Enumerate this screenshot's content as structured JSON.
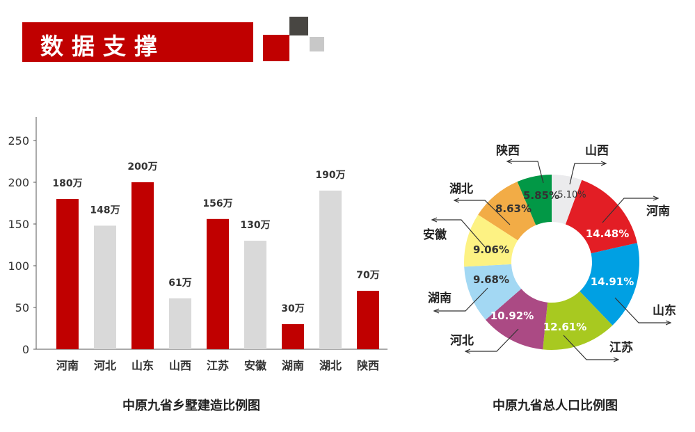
{
  "header": {
    "title": "数据支撑"
  },
  "colors": {
    "red": "#c00000",
    "grey": "#d9d9d9",
    "dark_square": "#484642",
    "light_square": "#c8c8c8"
  },
  "chart_data": [
    {
      "type": "bar",
      "title": "中原九省乡墅建造比例图",
      "categories": [
        "河南",
        "河北",
        "山东",
        "山西",
        "江苏",
        "安徽",
        "湖南",
        "湖北",
        "陕西"
      ],
      "values": [
        180,
        148,
        200,
        61,
        156,
        130,
        30,
        190,
        70
      ],
      "data_labels": [
        "180万",
        "148万",
        "200万",
        "61万",
        "156万",
        "130万",
        "30万",
        "190万",
        "70万"
      ],
      "bar_colors": [
        "#c00000",
        "#d9d9d9",
        "#c00000",
        "#d9d9d9",
        "#c00000",
        "#d9d9d9",
        "#c00000",
        "#d9d9d9",
        "#c00000"
      ],
      "yticks": [
        0,
        50,
        100,
        150,
        200,
        250
      ],
      "ylim": [
        0,
        250
      ],
      "xlabel": "",
      "ylabel": "",
      "grid": false
    },
    {
      "type": "pie",
      "title": "中原九省总人口比例图",
      "donut": true,
      "labels": [
        "山西",
        "河南",
        "山东",
        "江苏",
        "河北",
        "湖南",
        "安徽",
        "湖北",
        "陕西"
      ],
      "values": [
        5.1,
        14.48,
        14.91,
        12.61,
        10.92,
        9.68,
        9.06,
        8.63,
        5.85
      ],
      "value_labels": [
        "5.10%",
        "14.48%",
        "14.91%",
        "12.61%",
        "10.92%",
        "9.68%",
        "9.06%",
        "8.63%",
        "5.85%"
      ],
      "colors": [
        "#ebebed",
        "#e31e25",
        "#00a0e3",
        "#a8c920",
        "#ab4a84",
        "#a3d8f3",
        "#fdf283",
        "#f2ac46",
        "#029846"
      ],
      "label_colors": [
        "#333333",
        "#ffffff",
        "#ffffff",
        "#ffffff",
        "#ffffff",
        "#333333",
        "#333333",
        "#333333",
        "#333333"
      ]
    }
  ]
}
